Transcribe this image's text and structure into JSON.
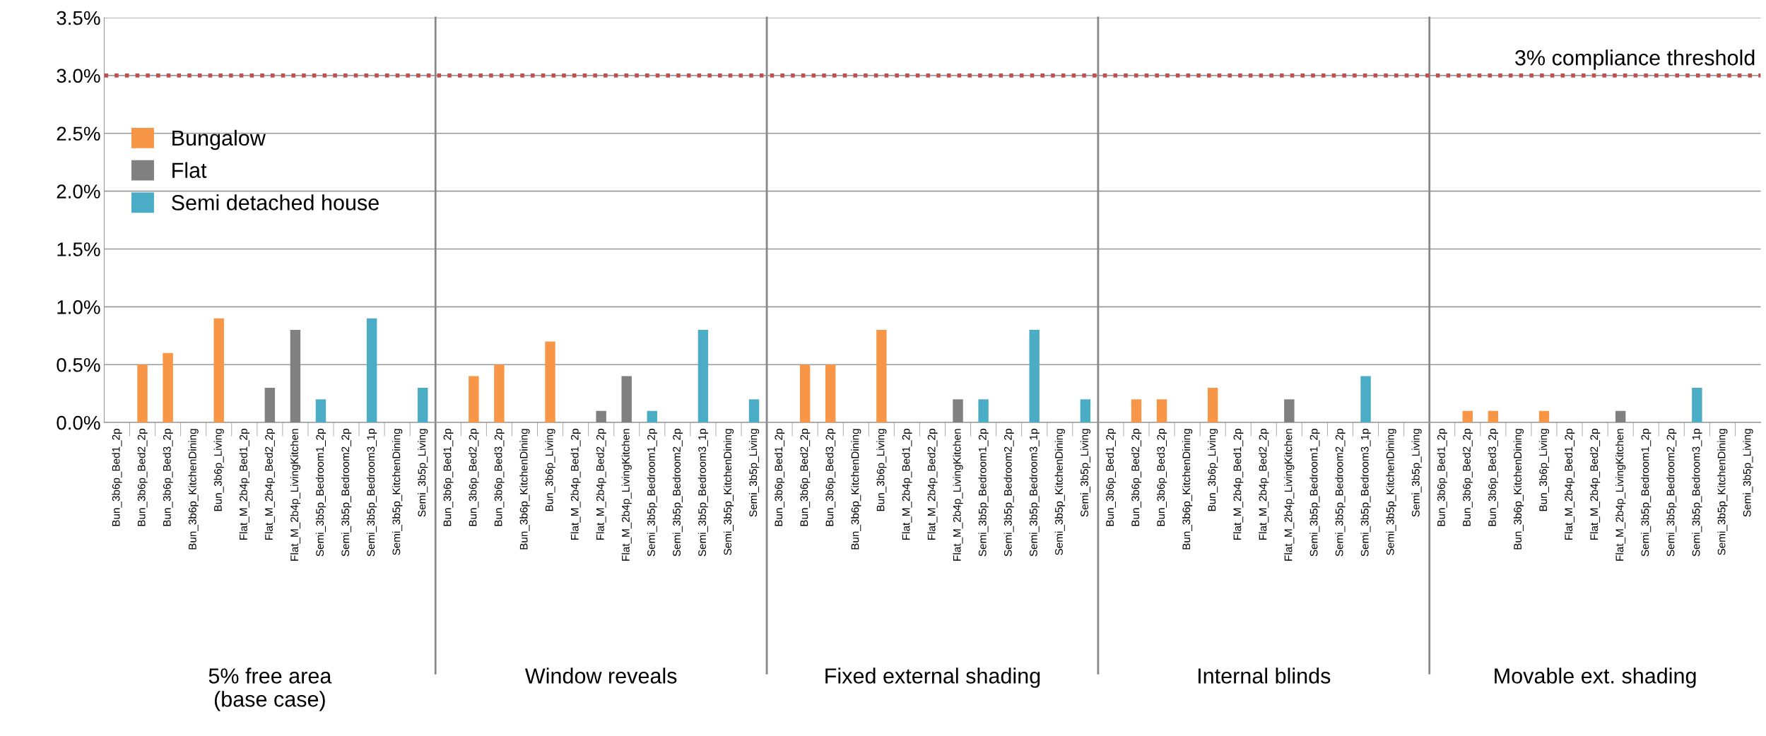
{
  "chart_data": {
    "type": "bar",
    "categories": [
      "Bun_3b6p_Bed1_2p",
      "Bun_3b6p_Bed2_2p",
      "Bun_3b6p_Bed3_2p",
      "Bun_3b6p_KitchenDining",
      "Bun_3b6p_Living",
      "Flat_M_2b4p_Bed1_2p",
      "Flat_M_2b4p_Bed2_2p",
      "Flat_M_2b4p_LivingKitchen",
      "Semi_3b5p_Bedroom1_2p",
      "Semi_3b5p_Bedroom2_2p",
      "Semi_3b5p_Bedroom3_1p",
      "Semi_3b5p_KitchenDining",
      "Semi_3b5p_Living",
      "Bun_3b6p_Bed1_2p",
      "Bun_3b6p_Bed2_2p",
      "Bun_3b6p_Bed3_2p",
      "Bun_3b6p_KitchenDining",
      "Bun_3b6p_Living",
      "Flat_M_2b4p_Bed1_2p",
      "Flat_M_2b4p_Bed2_2p",
      "Flat_M_2b4p_LivingKitchen",
      "Semi_3b5p_Bedroom1_2p",
      "Semi_3b5p_Bedroom2_2p",
      "Semi_3b5p_Bedroom3_1p",
      "Semi_3b5p_KitchenDining",
      "Semi_3b5p_Living",
      "Bun_3b6p_Bed1_2p",
      "Bun_3b6p_Bed2_2p",
      "Bun_3b6p_Bed3_2p",
      "Bun_3b6p_KitchenDining",
      "Bun_3b6p_Living",
      "Flat_M_2b4p_Bed1_2p",
      "Flat_M_2b4p_Bed2_2p",
      "Flat_M_2b4p_LivingKitchen",
      "Semi_3b5p_Bedroom1_2p",
      "Semi_3b5p_Bedroom2_2p",
      "Semi_3b5p_Bedroom3_1p",
      "Semi_3b5p_KitchenDining",
      "Semi_3b5p_Living",
      "Bun_3b6p_Bed1_2p",
      "Bun_3b6p_Bed2_2p",
      "Bun_3b6p_Bed3_2p",
      "Bun_3b6p_KitchenDining",
      "Bun_3b6p_Living",
      "Flat_M_2b4p_Bed1_2p",
      "Flat_M_2b4p_Bed2_2p",
      "Flat_M_2b4p_LivingKitchen",
      "Semi_3b5p_Bedroom1_2p",
      "Semi_3b5p_Bedroom2_2p",
      "Semi_3b5p_Bedroom3_1p",
      "Semi_3b5p_KitchenDining",
      "Semi_3b5p_Living",
      "Bun_3b6p_Bed1_2p",
      "Bun_3b6p_Bed2_2p",
      "Bun_3b6p_Bed3_2p",
      "Bun_3b6p_KitchenDining",
      "Bun_3b6p_Living",
      "Flat_M_2b4p_Bed1_2p",
      "Flat_M_2b4p_Bed2_2p",
      "Flat_M_2b4p_LivingKitchen",
      "Semi_3b5p_Bedroom1_2p",
      "Semi_3b5p_Bedroom2_2p",
      "Semi_3b5p_Bedroom3_1p",
      "Semi_3b5p_KitchenDining",
      "Semi_3b5p_Living"
    ],
    "series": [
      {
        "name": "Bungalow",
        "color": "#f79646",
        "values": [
          0,
          0.5,
          0.6,
          0,
          0.9,
          null,
          null,
          null,
          null,
          null,
          null,
          null,
          null,
          0,
          0.4,
          0.5,
          0,
          0.7,
          null,
          null,
          null,
          null,
          null,
          null,
          null,
          null,
          0,
          0.5,
          0.5,
          0,
          0.8,
          null,
          null,
          null,
          null,
          null,
          null,
          null,
          null,
          0,
          0.2,
          0.2,
          0,
          0.3,
          null,
          null,
          null,
          null,
          null,
          null,
          null,
          null,
          0,
          0.1,
          0.1,
          0,
          0.1,
          null,
          null,
          null,
          null,
          null,
          null,
          null,
          null
        ]
      },
      {
        "name": "Flat",
        "color": "#808080",
        "values": [
          null,
          null,
          null,
          null,
          null,
          0,
          0.3,
          0.8,
          null,
          null,
          null,
          null,
          null,
          null,
          null,
          null,
          null,
          null,
          0,
          0.1,
          0.4,
          null,
          null,
          null,
          null,
          null,
          null,
          null,
          null,
          null,
          null,
          0,
          0,
          0.2,
          null,
          null,
          null,
          null,
          null,
          null,
          null,
          null,
          null,
          null,
          0,
          0,
          0.2,
          null,
          null,
          null,
          null,
          null,
          null,
          null,
          null,
          null,
          null,
          0,
          0,
          0.1,
          null,
          null,
          null,
          null,
          null
        ]
      },
      {
        "name": "Semi detached house",
        "color": "#4bacc6",
        "values": [
          null,
          null,
          null,
          null,
          null,
          null,
          null,
          null,
          0.2,
          0,
          0.9,
          0,
          0.3,
          null,
          null,
          null,
          null,
          null,
          null,
          null,
          null,
          0.1,
          0,
          0.8,
          0,
          0.2,
          null,
          null,
          null,
          null,
          null,
          null,
          null,
          null,
          0.2,
          0,
          0.8,
          0,
          0.2,
          null,
          null,
          null,
          null,
          null,
          null,
          null,
          null,
          0,
          0,
          0.4,
          0,
          0,
          null,
          null,
          null,
          null,
          null,
          null,
          null,
          null,
          0,
          0,
          0.3,
          0,
          0
        ]
      }
    ],
    "ylim": [
      0,
      3.5
    ],
    "yticks": [
      {
        "value": 0,
        "label": "0.0%"
      },
      {
        "value": 0.5,
        "label": "0.5%"
      },
      {
        "value": 1.0,
        "label": "1.0%"
      },
      {
        "value": 1.5,
        "label": "1.5%"
      },
      {
        "value": 2.0,
        "label": "2.0%"
      },
      {
        "value": 2.5,
        "label": "2.5%"
      },
      {
        "value": 3.0,
        "label": "3.0%"
      },
      {
        "value": 3.5,
        "label": "3.5%"
      }
    ],
    "grid": "y",
    "legend": "left",
    "ref_lines": [
      {
        "axis": "y",
        "value": 3.0,
        "label": "3% compliance threshold",
        "color": "#c0504d",
        "line_style": "dotted"
      }
    ],
    "annotations": [
      "5% free area\n(base case)",
      "Window reveals",
      "Fixed external shading",
      "Internal blinds",
      "Movable ext. shading"
    ]
  }
}
